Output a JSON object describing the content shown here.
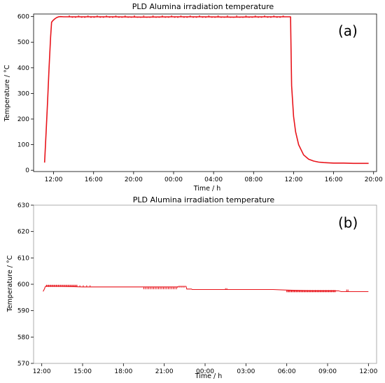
{
  "chart_data": [
    {
      "type": "line",
      "panel_label": "(a)",
      "title": "PLD Alumina irradiation temperature",
      "xlabel": "Time / h",
      "ylabel": "Temperature / °C",
      "x_unit": "hours since 12:00 day 1",
      "xlim": [
        -2.0,
        32.3
      ],
      "ylim": [
        -5,
        610
      ],
      "yticks": [
        0,
        100,
        200,
        300,
        400,
        500,
        600
      ],
      "xticks": [
        {
          "x": 0,
          "label": "12:00"
        },
        {
          "x": 4,
          "label": "16:00"
        },
        {
          "x": 8,
          "label": "20:00"
        },
        {
          "x": 12,
          "label": "00:00"
        },
        {
          "x": 16,
          "label": "04:00"
        },
        {
          "x": 20,
          "label": "08:00"
        },
        {
          "x": 24,
          "label": "12:00"
        },
        {
          "x": 28,
          "label": "16:00"
        },
        {
          "x": 32,
          "label": "20:00"
        }
      ],
      "series": [
        {
          "color": "#e8141b",
          "x": [
            -0.9,
            -0.75,
            -0.6,
            -0.45,
            -0.3,
            -0.2,
            -0.1,
            0.0,
            0.15,
            0.3,
            0.5,
            0.7,
            1.0,
            3,
            6,
            9,
            12,
            15,
            18,
            21,
            23.7,
            23.72,
            23.8,
            24.0,
            24.2,
            24.5,
            25.0,
            25.5,
            26.0,
            26.5,
            27.0,
            27.5,
            28.0,
            29.0,
            30.0,
            31.0,
            31.5
          ],
          "y": [
            30,
            150,
            270,
            400,
            520,
            578,
            583,
            587,
            592,
            596,
            599,
            600,
            599,
            599,
            599,
            598,
            599,
            599,
            598,
            599,
            599,
            540,
            330,
            210,
            150,
            100,
            60,
            43,
            36,
            32,
            30,
            29,
            28,
            28,
            27,
            27,
            27
          ]
        }
      ]
    },
    {
      "type": "line",
      "panel_label": "(b)",
      "title": "PLD Alumina irradiation temperature",
      "xlabel": "Time / h",
      "ylabel": "Temperature / °C",
      "x_unit": "hours since 12:00 day 1",
      "xlim": [
        -0.6,
        24.6
      ],
      "ylim": [
        570,
        630
      ],
      "yticks": [
        570,
        580,
        590,
        600,
        610,
        620,
        630
      ],
      "xticks": [
        {
          "x": 0,
          "label": "12:00"
        },
        {
          "x": 3,
          "label": "15:00"
        },
        {
          "x": 6,
          "label": "18:00"
        },
        {
          "x": 9,
          "label": "21:00"
        },
        {
          "x": 12,
          "label": "00:00"
        },
        {
          "x": 15,
          "label": "03:00"
        },
        {
          "x": 18,
          "label": "06:00"
        },
        {
          "x": 21,
          "label": "09:00"
        },
        {
          "x": 24,
          "label": "12:00"
        }
      ],
      "series": [
        {
          "color": "#e8141b",
          "x": [
            0.1,
            0.2,
            0.25,
            0.3,
            1.5,
            3,
            6,
            7.5,
            10.0,
            10.05,
            10.6,
            10.65,
            11.0,
            11.05,
            14,
            17,
            18.0,
            20,
            21.8,
            22.0,
            24.0
          ],
          "y": [
            597.3,
            598.3,
            599.0,
            599.3,
            599.2,
            599.0,
            599.0,
            599.0,
            599.0,
            599.2,
            599.2,
            598.2,
            598.2,
            598.0,
            598.0,
            598.0,
            597.8,
            597.5,
            597.5,
            597.2,
            597.2
          ]
        }
      ]
    }
  ]
}
